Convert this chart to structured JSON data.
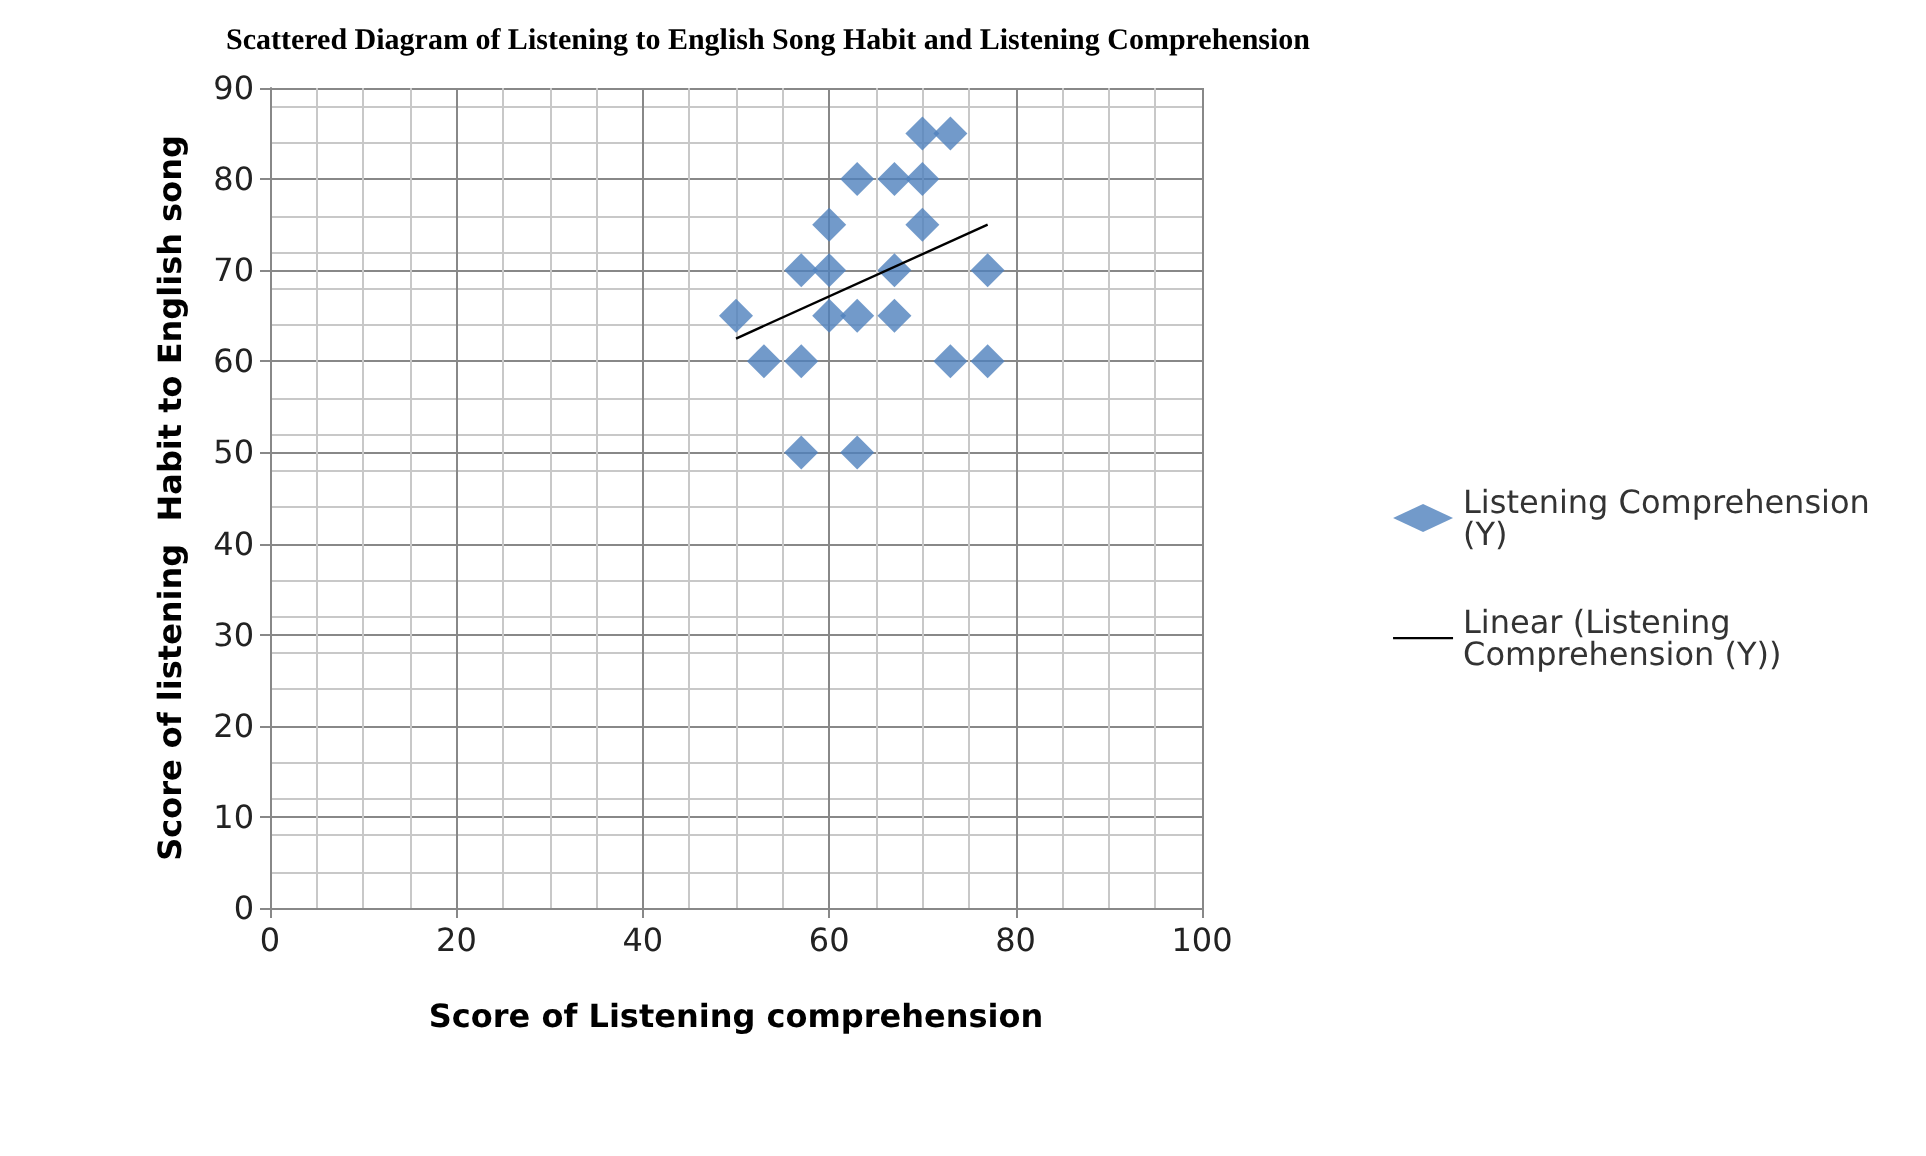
{
  "chart_data": {
    "type": "scatter",
    "title": "Scattered Diagram of Listening to English Song Habit and Listening Comprehension",
    "xlabel": "Score of Listening comprehension",
    "ylabel": "Score of listening  Habit to English song",
    "xlim": [
      0,
      100
    ],
    "xticks": [
      0,
      20,
      40,
      60,
      80,
      100
    ],
    "ylim": [
      0,
      90
    ],
    "yticks": [
      0,
      10,
      20,
      30,
      40,
      50,
      60,
      70,
      80,
      90
    ],
    "grid": true,
    "legend": "right",
    "marker": "diamond",
    "series": [
      {
        "name": "Listening Comprehension (Y)",
        "color": "#4f81bd",
        "x": [
          50,
          53,
          57,
          57,
          60,
          60,
          63,
          67,
          70,
          70,
          73,
          70,
          67,
          77,
          60,
          63,
          67,
          73,
          77,
          57,
          63
        ],
        "values": [
          65,
          60,
          60,
          70,
          70,
          75,
          80,
          80,
          80,
          85,
          85,
          75,
          70,
          70,
          65,
          65,
          65,
          60,
          60,
          50,
          50
        ]
      },
      {
        "name": "Linear (Listening Comprehension (Y))",
        "type": "line",
        "color": "#000000",
        "marker": "none",
        "line_style": "solid",
        "x": [
          50,
          77
        ],
        "values": [
          62.5,
          75
        ]
      }
    ]
  }
}
